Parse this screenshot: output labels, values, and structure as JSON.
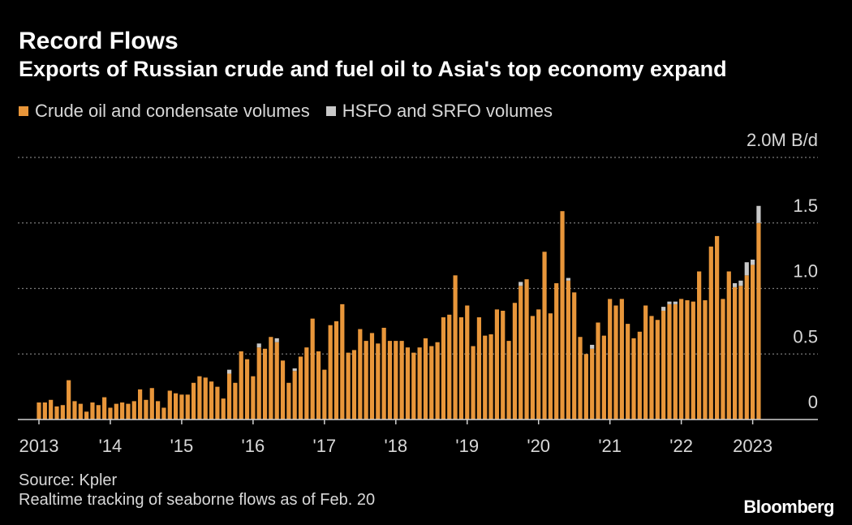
{
  "header": {
    "title": "Record Flows",
    "subtitle": "Exports of Russian crude and fuel oil to Asia's top economy expand"
  },
  "colors": {
    "crude": "#e8963a",
    "hsfo": "#c8c8c8",
    "background": "#000000",
    "grid": "#7a7a7a",
    "text": "#d8d8d8"
  },
  "footer": {
    "source": "Source: Kpler",
    "note": "Realtime tracking of seaborne flows as of Feb. 20",
    "brand": "Bloomberg"
  },
  "chart_data": {
    "type": "bar",
    "stacked": true,
    "title": "Record Flows",
    "subtitle": "Exports of Russian crude and fuel oil to Asia's top economy expand",
    "unit_label": "2.0M B/d",
    "ylim": [
      0,
      2.0
    ],
    "yticks": [
      0,
      0.5,
      1.0,
      1.5,
      2.0
    ],
    "ytick_labels": [
      "0",
      "0.5",
      "1.0",
      "1.5",
      "2.0M B/d"
    ],
    "xtick_labels": [
      "2013",
      "'14",
      "'15",
      "'16",
      "'17",
      "'18",
      "'19",
      "'20",
      "'21",
      "'22",
      "2023"
    ],
    "xtick_months": [
      0,
      12,
      24,
      36,
      48,
      60,
      72,
      84,
      96,
      108,
      120
    ],
    "month_start": "2013-01",
    "grid": true,
    "legend_placement": "top-left",
    "series": [
      {
        "name": "Crude oil and condensate volumes",
        "color": "#e8963a",
        "values": [
          0.13,
          0.13,
          0.15,
          0.1,
          0.11,
          0.3,
          0.14,
          0.12,
          0.06,
          0.13,
          0.11,
          0.17,
          0.09,
          0.12,
          0.13,
          0.12,
          0.14,
          0.23,
          0.15,
          0.24,
          0.14,
          0.09,
          0.22,
          0.2,
          0.19,
          0.19,
          0.28,
          0.33,
          0.32,
          0.29,
          0.25,
          0.16,
          0.35,
          0.28,
          0.52,
          0.46,
          0.33,
          0.55,
          0.54,
          0.63,
          0.59,
          0.45,
          0.28,
          0.37,
          0.48,
          0.55,
          0.77,
          0.52,
          0.38,
          0.72,
          0.75,
          0.88,
          0.51,
          0.53,
          0.69,
          0.6,
          0.66,
          0.58,
          0.7,
          0.6,
          0.6,
          0.6,
          0.55,
          0.51,
          0.55,
          0.62,
          0.56,
          0.59,
          0.78,
          0.8,
          1.1,
          0.78,
          0.87,
          0.56,
          0.78,
          0.64,
          0.65,
          0.84,
          0.83,
          0.6,
          0.89,
          1.02,
          1.07,
          0.79,
          0.84,
          1.28,
          0.81,
          1.04,
          1.59,
          1.06,
          0.97,
          0.63,
          0.5,
          0.54,
          0.74,
          0.64,
          0.92,
          0.87,
          0.92,
          0.73,
          0.62,
          0.67,
          0.87,
          0.79,
          0.76,
          0.83,
          0.88,
          0.88,
          0.92,
          0.91,
          0.9,
          1.13,
          0.91,
          1.32,
          1.4,
          0.92,
          1.13,
          1.01,
          1.02,
          1.1,
          1.18,
          1.5
        ],
        "extra": "0"
      },
      {
        "name": "HSFO and SRFO volumes",
        "color": "#c8c8c8",
        "values": [
          0,
          0,
          0,
          0,
          0,
          0,
          0,
          0,
          0,
          0,
          0,
          0,
          0,
          0,
          0,
          0,
          0,
          0,
          0,
          0,
          0,
          0,
          0,
          0,
          0,
          0,
          0,
          0,
          0,
          0,
          0,
          0,
          0.03,
          0,
          0,
          0,
          0,
          0.03,
          0,
          0,
          0.03,
          0,
          0,
          0.02,
          0,
          0,
          0,
          0,
          0,
          0,
          0,
          0,
          0,
          0,
          0,
          0,
          0,
          0,
          0,
          0,
          0,
          0,
          0,
          0,
          0,
          0,
          0,
          0,
          0,
          0,
          0,
          0,
          0,
          0,
          0,
          0,
          0,
          0,
          0,
          0,
          0,
          0.03,
          0,
          0,
          0,
          0,
          0,
          0,
          0,
          0.02,
          0,
          0,
          0,
          0.03,
          0,
          0,
          0,
          0,
          0,
          0,
          0,
          0,
          0,
          0,
          0,
          0.03,
          0.02,
          0.02,
          0,
          0,
          0,
          0,
          0,
          0,
          0,
          0,
          0,
          0.03,
          0.04,
          0.1,
          0.04,
          0.13
        ]
      }
    ]
  }
}
